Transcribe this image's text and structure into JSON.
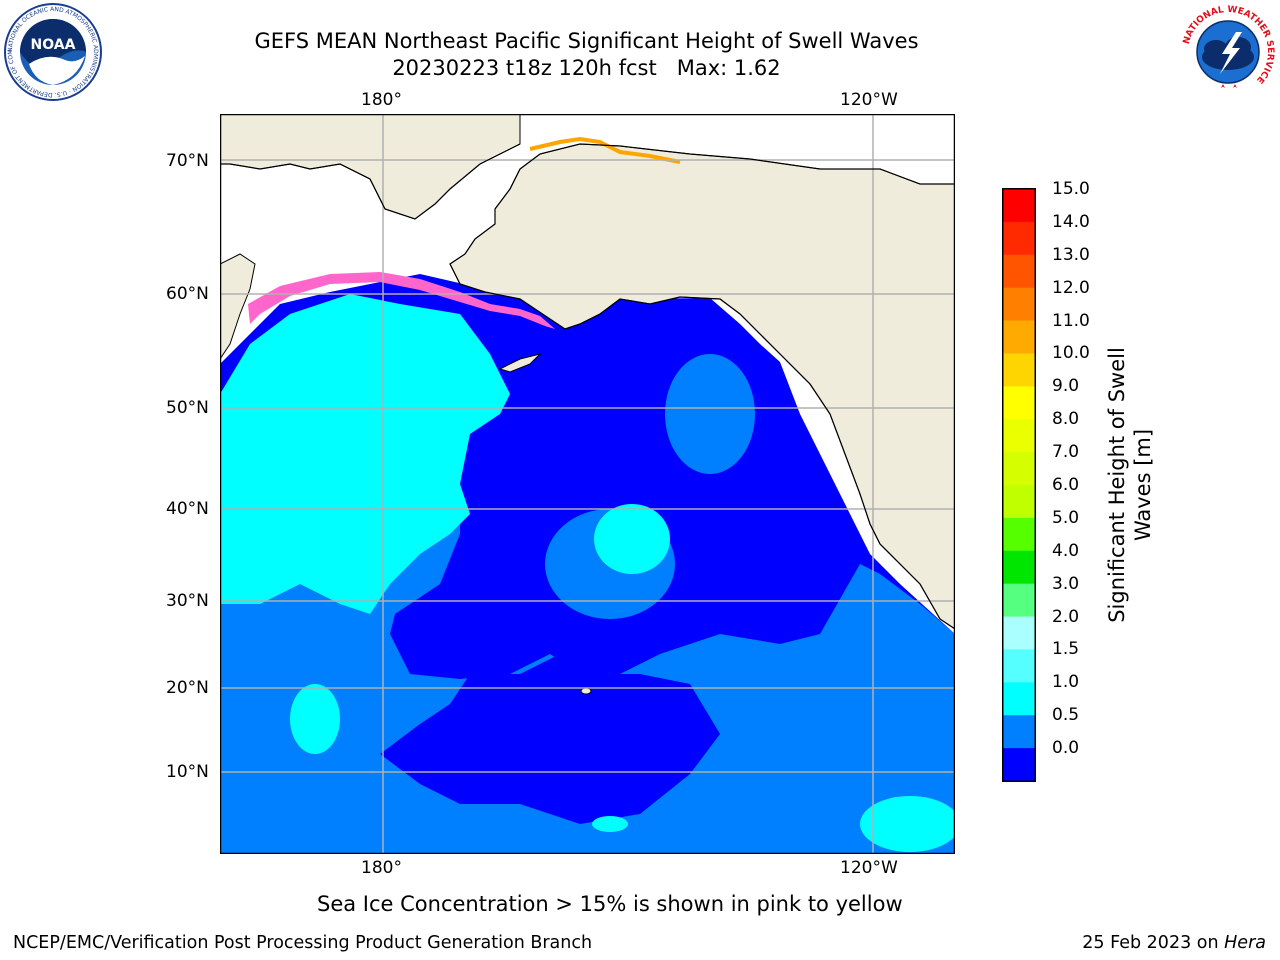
{
  "header": {
    "title_line1": "GEFS MEAN Northeast Pacific Significant Height of Swell Waves",
    "title_line2": "20230223 t18z 120h fcst   Max: 1.62"
  },
  "logos": {
    "left_name": "NOAA",
    "left_ring_text": "NATIONAL OCEANIC AND ATMOSPHERIC ADMINISTRATION · U.S. DEPARTMENT OF COMMERCE",
    "right_ring_text": "NATIONAL WEATHER SERVICE"
  },
  "map": {
    "lon_labels_top": [
      "180°",
      "120°W"
    ],
    "lon_labels_bottom": [
      "180°",
      "120°W"
    ],
    "lat_labels": [
      "70°N",
      "60°N",
      "50°N",
      "40°N",
      "30°N",
      "20°N",
      "10°N"
    ],
    "colors": {
      "land": "#efecdc",
      "ocean_low": "#0000ff",
      "ocean_mid": "#0080ff",
      "ocean_high": "#00ffff",
      "ice_pink": "#ff66cc",
      "ice_orange": "#ffa500",
      "grid": "#b0b0b0"
    }
  },
  "colorbar": {
    "label_line1": "Significant Height of Swell",
    "label_line2": "Waves [m]",
    "ticks": [
      "15.0",
      "14.0",
      "13.0",
      "12.0",
      "11.0",
      "10.0",
      "9.0",
      "8.0",
      "7.0",
      "6.0",
      "5.0",
      "4.0",
      "3.0",
      "2.0",
      "1.5",
      "1.0",
      "0.5",
      "0.0"
    ],
    "colors_top_to_bottom": [
      "#ff0000",
      "#ff2a00",
      "#ff5500",
      "#ff8000",
      "#ffaa00",
      "#ffd500",
      "#ffff00",
      "#eaff00",
      "#d5ff00",
      "#bfff00",
      "#55ff00",
      "#00e600",
      "#55ff80",
      "#aaffff",
      "#55ffff",
      "#00ffff",
      "#0080ff",
      "#0000ff"
    ]
  },
  "footer": {
    "note": "Sea Ice Concentration > 15% is shown in pink to yellow",
    "credit": "NCEP/EMC/Verification Post Processing Product Generation Branch",
    "date": "25 Feb 2023 on ",
    "machine": "Hera"
  }
}
